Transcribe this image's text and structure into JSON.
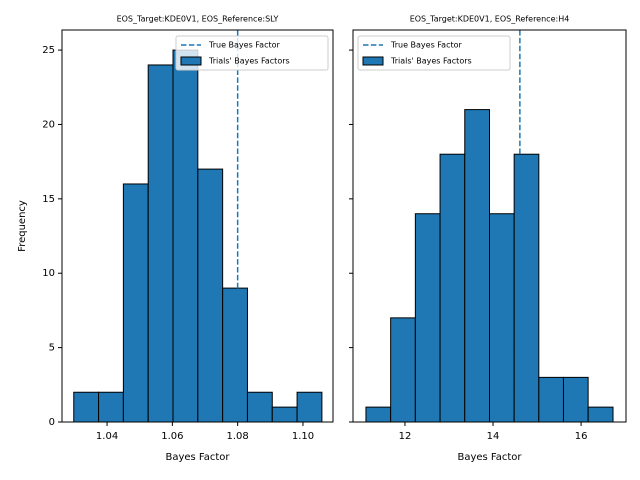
{
  "chart_data": [
    {
      "type": "histogram",
      "title": "EOS_Target:KDE0V1, EOS_Reference:SLY",
      "xlabel": "Bayes Factor",
      "ylabel": "Frequency",
      "bins": [
        1.0298,
        1.0374,
        1.045,
        1.0526,
        1.0602,
        1.0678,
        1.0754,
        1.083,
        1.0906,
        1.0982,
        1.1058
      ],
      "series": [
        {
          "name": "Trials' Bayes Factors",
          "color": "#1f77b4",
          "values": [
            2,
            2,
            16,
            24,
            25,
            17,
            9,
            2,
            1,
            2
          ]
        }
      ],
      "reference_line": {
        "name": "True Bayes Factor",
        "x": 1.08,
        "color": "#1f77b4"
      },
      "xlim": [
        1.0262,
        1.1092
      ],
      "xticks": [
        1.04,
        1.06,
        1.08,
        {
          "value": 1.1,
          "label": "1.10"
        }
      ],
      "ylim": [
        0,
        26.35
      ],
      "yticks": [
        0,
        5,
        10,
        15,
        20,
        25
      ],
      "ytick_labels": true,
      "legend": "upper right"
    },
    {
      "type": "histogram",
      "title": "EOS_Target:KDE0V1, EOS_Reference:H4",
      "xlabel": "Bayes Factor",
      "bins": [
        11.114,
        11.675,
        12.236,
        12.797,
        13.358,
        13.92,
        14.48,
        15.04,
        15.6,
        16.16,
        16.725
      ],
      "series": [
        {
          "name": "Trials' Bayes Factors",
          "color": "#1f77b4",
          "values": [
            1,
            7,
            14,
            18,
            21,
            14,
            18,
            3,
            3,
            1
          ]
        }
      ],
      "reference_line": {
        "name": "True Bayes Factor",
        "x": 14.61,
        "color": "#1f77b4"
      },
      "xlim": [
        10.82,
        17.02
      ],
      "xticks": [
        12,
        14,
        16
      ],
      "ylim": [
        0,
        26.35
      ],
      "yticks": [
        0,
        5,
        10,
        15,
        20,
        25
      ],
      "ytick_labels": false,
      "legend": "upper left"
    }
  ]
}
